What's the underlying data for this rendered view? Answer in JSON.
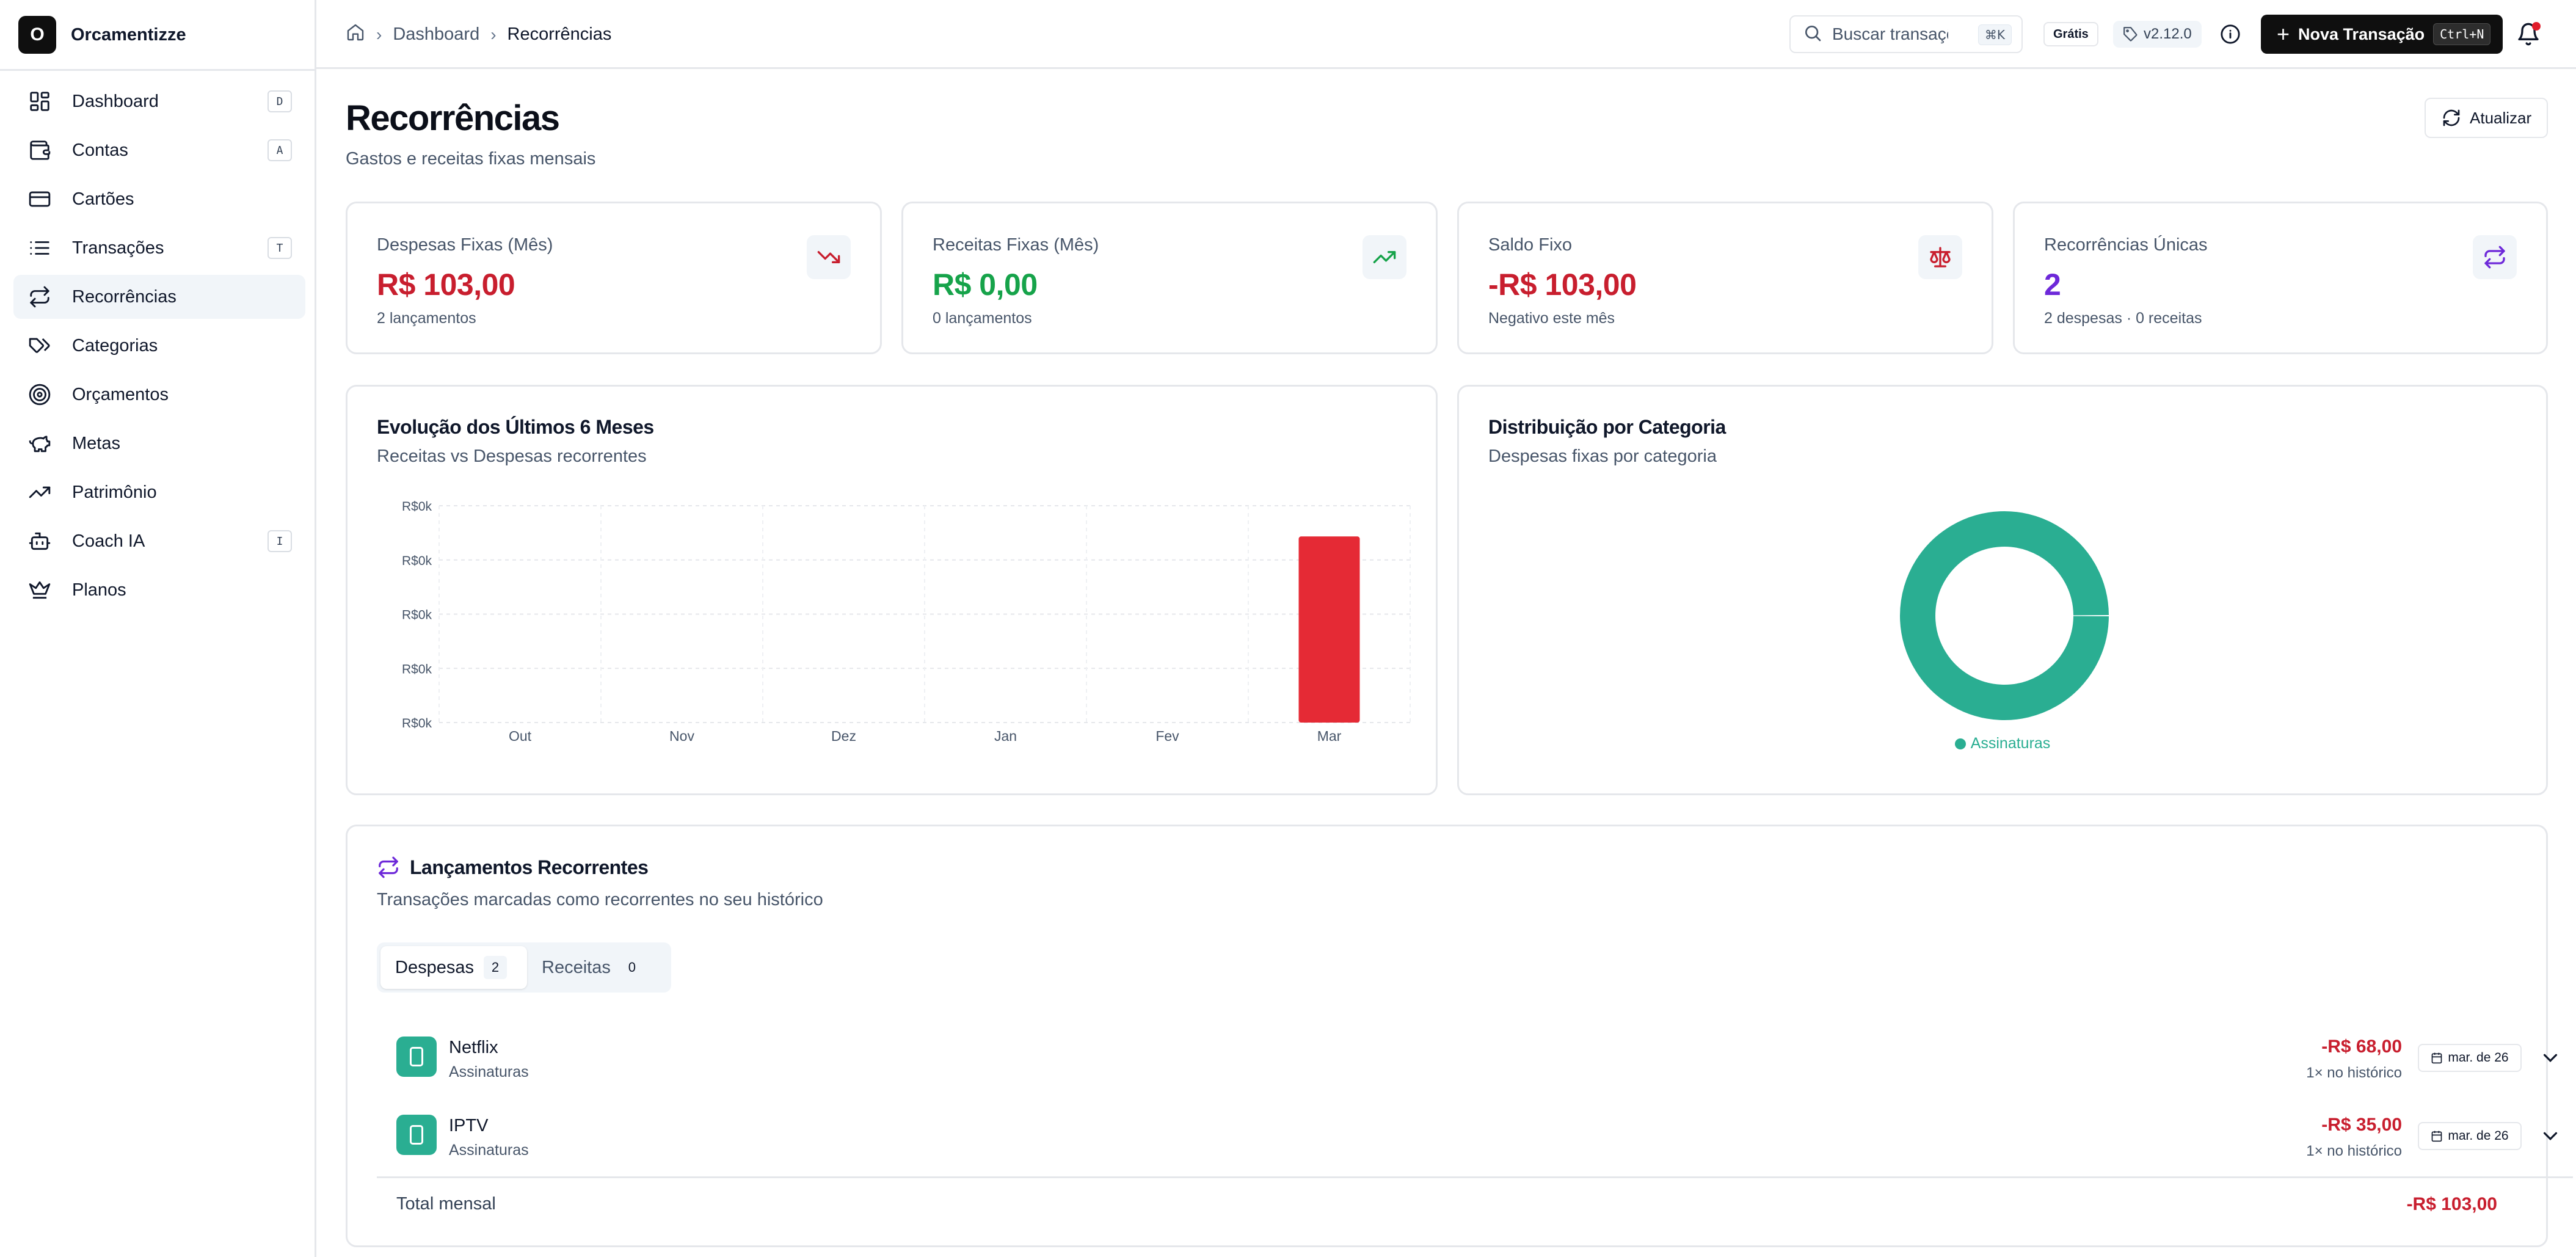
{
  "brand": {
    "logo_letter": "O",
    "name": "Orcamentizze"
  },
  "sidebar": {
    "items": [
      {
        "label": "Dashboard",
        "shortcut": "D",
        "icon": "dashboard-icon"
      },
      {
        "label": "Contas",
        "shortcut": "A",
        "icon": "wallet-icon"
      },
      {
        "label": "Cartões",
        "shortcut": "",
        "icon": "credit-card-icon"
      },
      {
        "label": "Transações",
        "shortcut": "T",
        "icon": "list-icon"
      },
      {
        "label": "Recorrências",
        "shortcut": "",
        "icon": "repeat-icon",
        "active": true
      },
      {
        "label": "Categorias",
        "shortcut": "",
        "icon": "tags-icon"
      },
      {
        "label": "Orçamentos",
        "shortcut": "",
        "icon": "target-icon"
      },
      {
        "label": "Metas",
        "shortcut": "",
        "icon": "piggy-bank-icon"
      },
      {
        "label": "Patrimônio",
        "shortcut": "",
        "icon": "trending-up-icon"
      },
      {
        "label": "Coach IA",
        "shortcut": "I",
        "icon": "bot-icon"
      },
      {
        "label": "Planos",
        "shortcut": "",
        "icon": "crown-icon"
      }
    ]
  },
  "header": {
    "breadcrumb": {
      "parent": "Dashboard",
      "current": "Recorrências"
    },
    "search": {
      "placeholder": "Buscar transações...",
      "shortcut": "⌘K"
    },
    "plan_badge": "Grátis",
    "version": "v2.12.0",
    "new_button": {
      "label": "Nova Transação",
      "shortcut": "Ctrl+N"
    }
  },
  "page": {
    "title": "Recorrências",
    "subtitle": "Gastos e receitas fixas mensais",
    "refresh_label": "Atualizar"
  },
  "stats": [
    {
      "label": "Despesas Fixas (Mês)",
      "value": "R$ 103,00",
      "sub": "2 lançamentos",
      "color": "#c81e2e",
      "icon": "trending-down-icon"
    },
    {
      "label": "Receitas Fixas (Mês)",
      "value": "R$ 0,00",
      "sub": "0 lançamentos",
      "color": "#16a34a",
      "icon": "trending-up-icon"
    },
    {
      "label": "Saldo Fixo",
      "value": "-R$ 103,00",
      "sub": "Negativo este mês",
      "color": "#c81e2e",
      "icon": "scale-icon"
    },
    {
      "label": "Recorrências Únicas",
      "value": "2",
      "sub": "2 despesas · 0 receitas",
      "color": "#6d28d9",
      "icon": "repeat-icon"
    }
  ],
  "evolution": {
    "title": "Evolução dos Últimos 6 Meses",
    "subtitle": "Receitas vs Despesas recorrentes"
  },
  "distribution": {
    "title": "Distribuição por Categoria",
    "subtitle": "Despesas fixas por categoria"
  },
  "chart_data": [
    {
      "type": "bar",
      "title": "Evolução dos Últimos 6 Meses",
      "subtitle": "Receitas vs Despesas recorrentes",
      "categories": [
        "Out",
        "Nov",
        "Dez",
        "Jan",
        "Fev",
        "Mar"
      ],
      "y_tick_labels": [
        "R$0k",
        "R$0k",
        "R$0k",
        "R$0k",
        "R$0k"
      ],
      "series": [
        {
          "values": [
            0,
            0,
            0,
            0,
            0,
            103
          ],
          "color": "#e52a35"
        }
      ],
      "ylim": [
        0,
        120
      ],
      "grid": true
    },
    {
      "type": "pie",
      "title": "Distribuição por Categoria",
      "subtitle": "Despesas fixas por categoria",
      "labels": [
        "Assinaturas"
      ],
      "values": [
        103
      ],
      "colors": [
        "#2aae92"
      ],
      "legend_position": "bottom"
    }
  ],
  "recurrents": {
    "title": "Lançamentos Recorrentes",
    "subtitle": "Transações marcadas como recorrentes no seu histórico",
    "tabs": [
      {
        "label": "Despesas",
        "count": "2"
      },
      {
        "label": "Receitas",
        "count": "0"
      }
    ],
    "rows": [
      {
        "name": "Netflix",
        "category": "Assinaturas",
        "amount": "-R$ 68,00",
        "history": "1× no histórico",
        "date": "mar. de 26"
      },
      {
        "name": "IPTV",
        "category": "Assinaturas",
        "amount": "-R$ 35,00",
        "history": "1× no histórico",
        "date": "mar. de 26"
      }
    ],
    "total_label": "Total mensal",
    "total_value": "-R$ 103,00"
  }
}
